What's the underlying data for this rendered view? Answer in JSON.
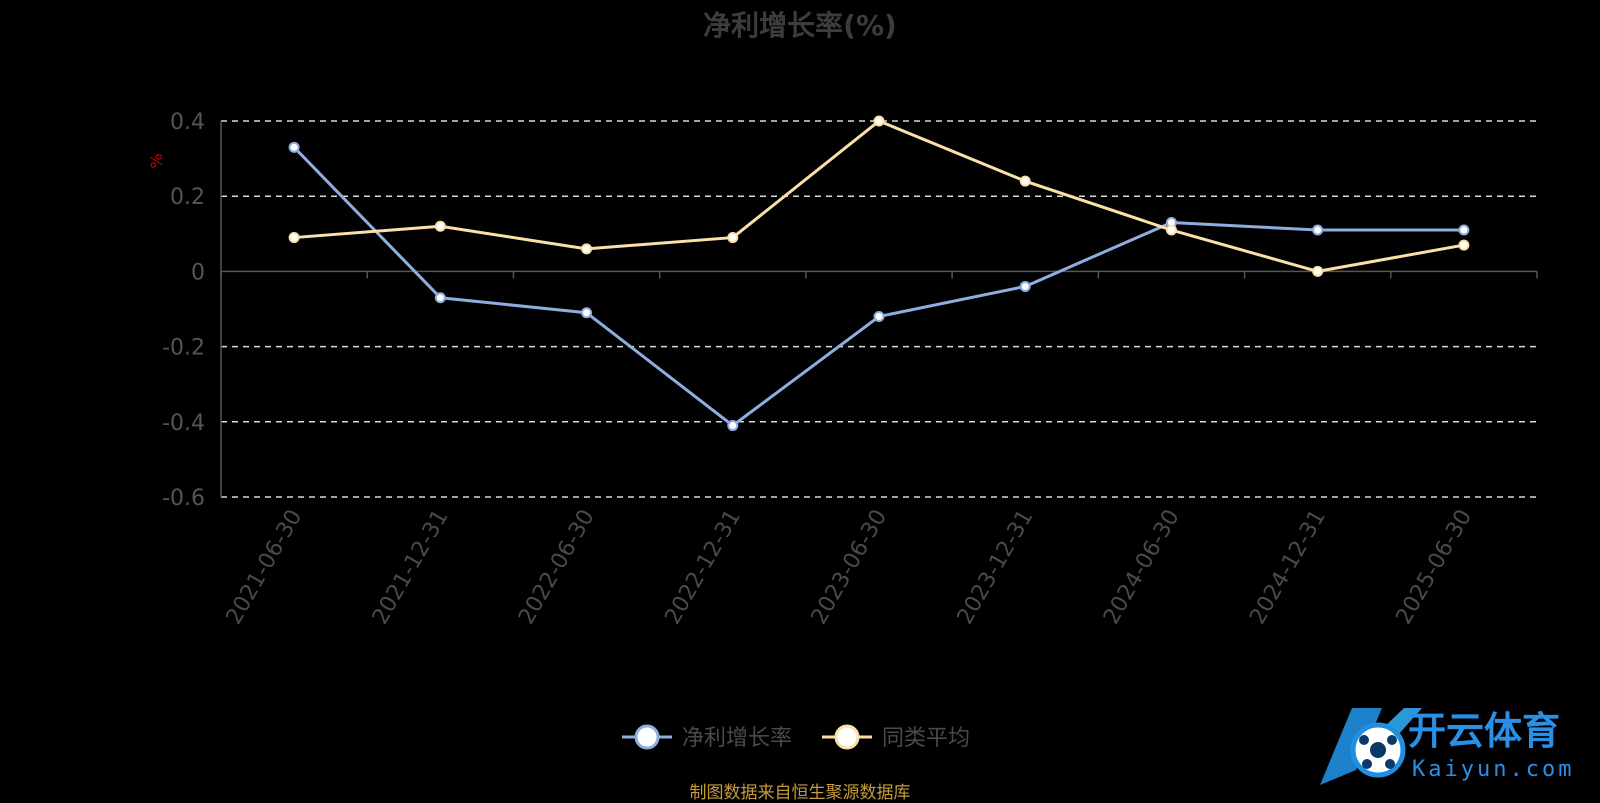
{
  "chart_data": {
    "type": "line",
    "title": "净利增长率(%)",
    "ylabel": "%",
    "ylim": [
      -0.6,
      0.4
    ],
    "yticks": [
      0.4,
      0.2,
      0,
      -0.2,
      -0.4,
      -0.6
    ],
    "ytick_labels": [
      "0.4",
      "0.2",
      "0",
      "-0.2",
      "-0.4",
      "-0.6"
    ],
    "categories": [
      "2021-06-30",
      "2021-12-31",
      "2022-06-30",
      "2022-12-31",
      "2023-06-30",
      "2023-12-31",
      "2024-06-30",
      "2024-12-31",
      "2025-06-30"
    ],
    "series": [
      {
        "name": "净利增长率",
        "color": "#8faee0",
        "values": [
          0.33,
          -0.07,
          -0.11,
          -0.41,
          -0.12,
          -0.04,
          0.13,
          0.11,
          0.11
        ]
      },
      {
        "name": "同类平均",
        "color": "#fbe0a8",
        "values": [
          0.09,
          0.12,
          0.06,
          0.09,
          0.4,
          0.24,
          0.11,
          0.0,
          0.07
        ]
      }
    ],
    "grid": true,
    "legend_position": "bottom-center"
  },
  "footer": "制图数据来自恒生聚源数据库",
  "watermark": {
    "text": "开云体育",
    "subtext": "Kaiyun.com"
  }
}
